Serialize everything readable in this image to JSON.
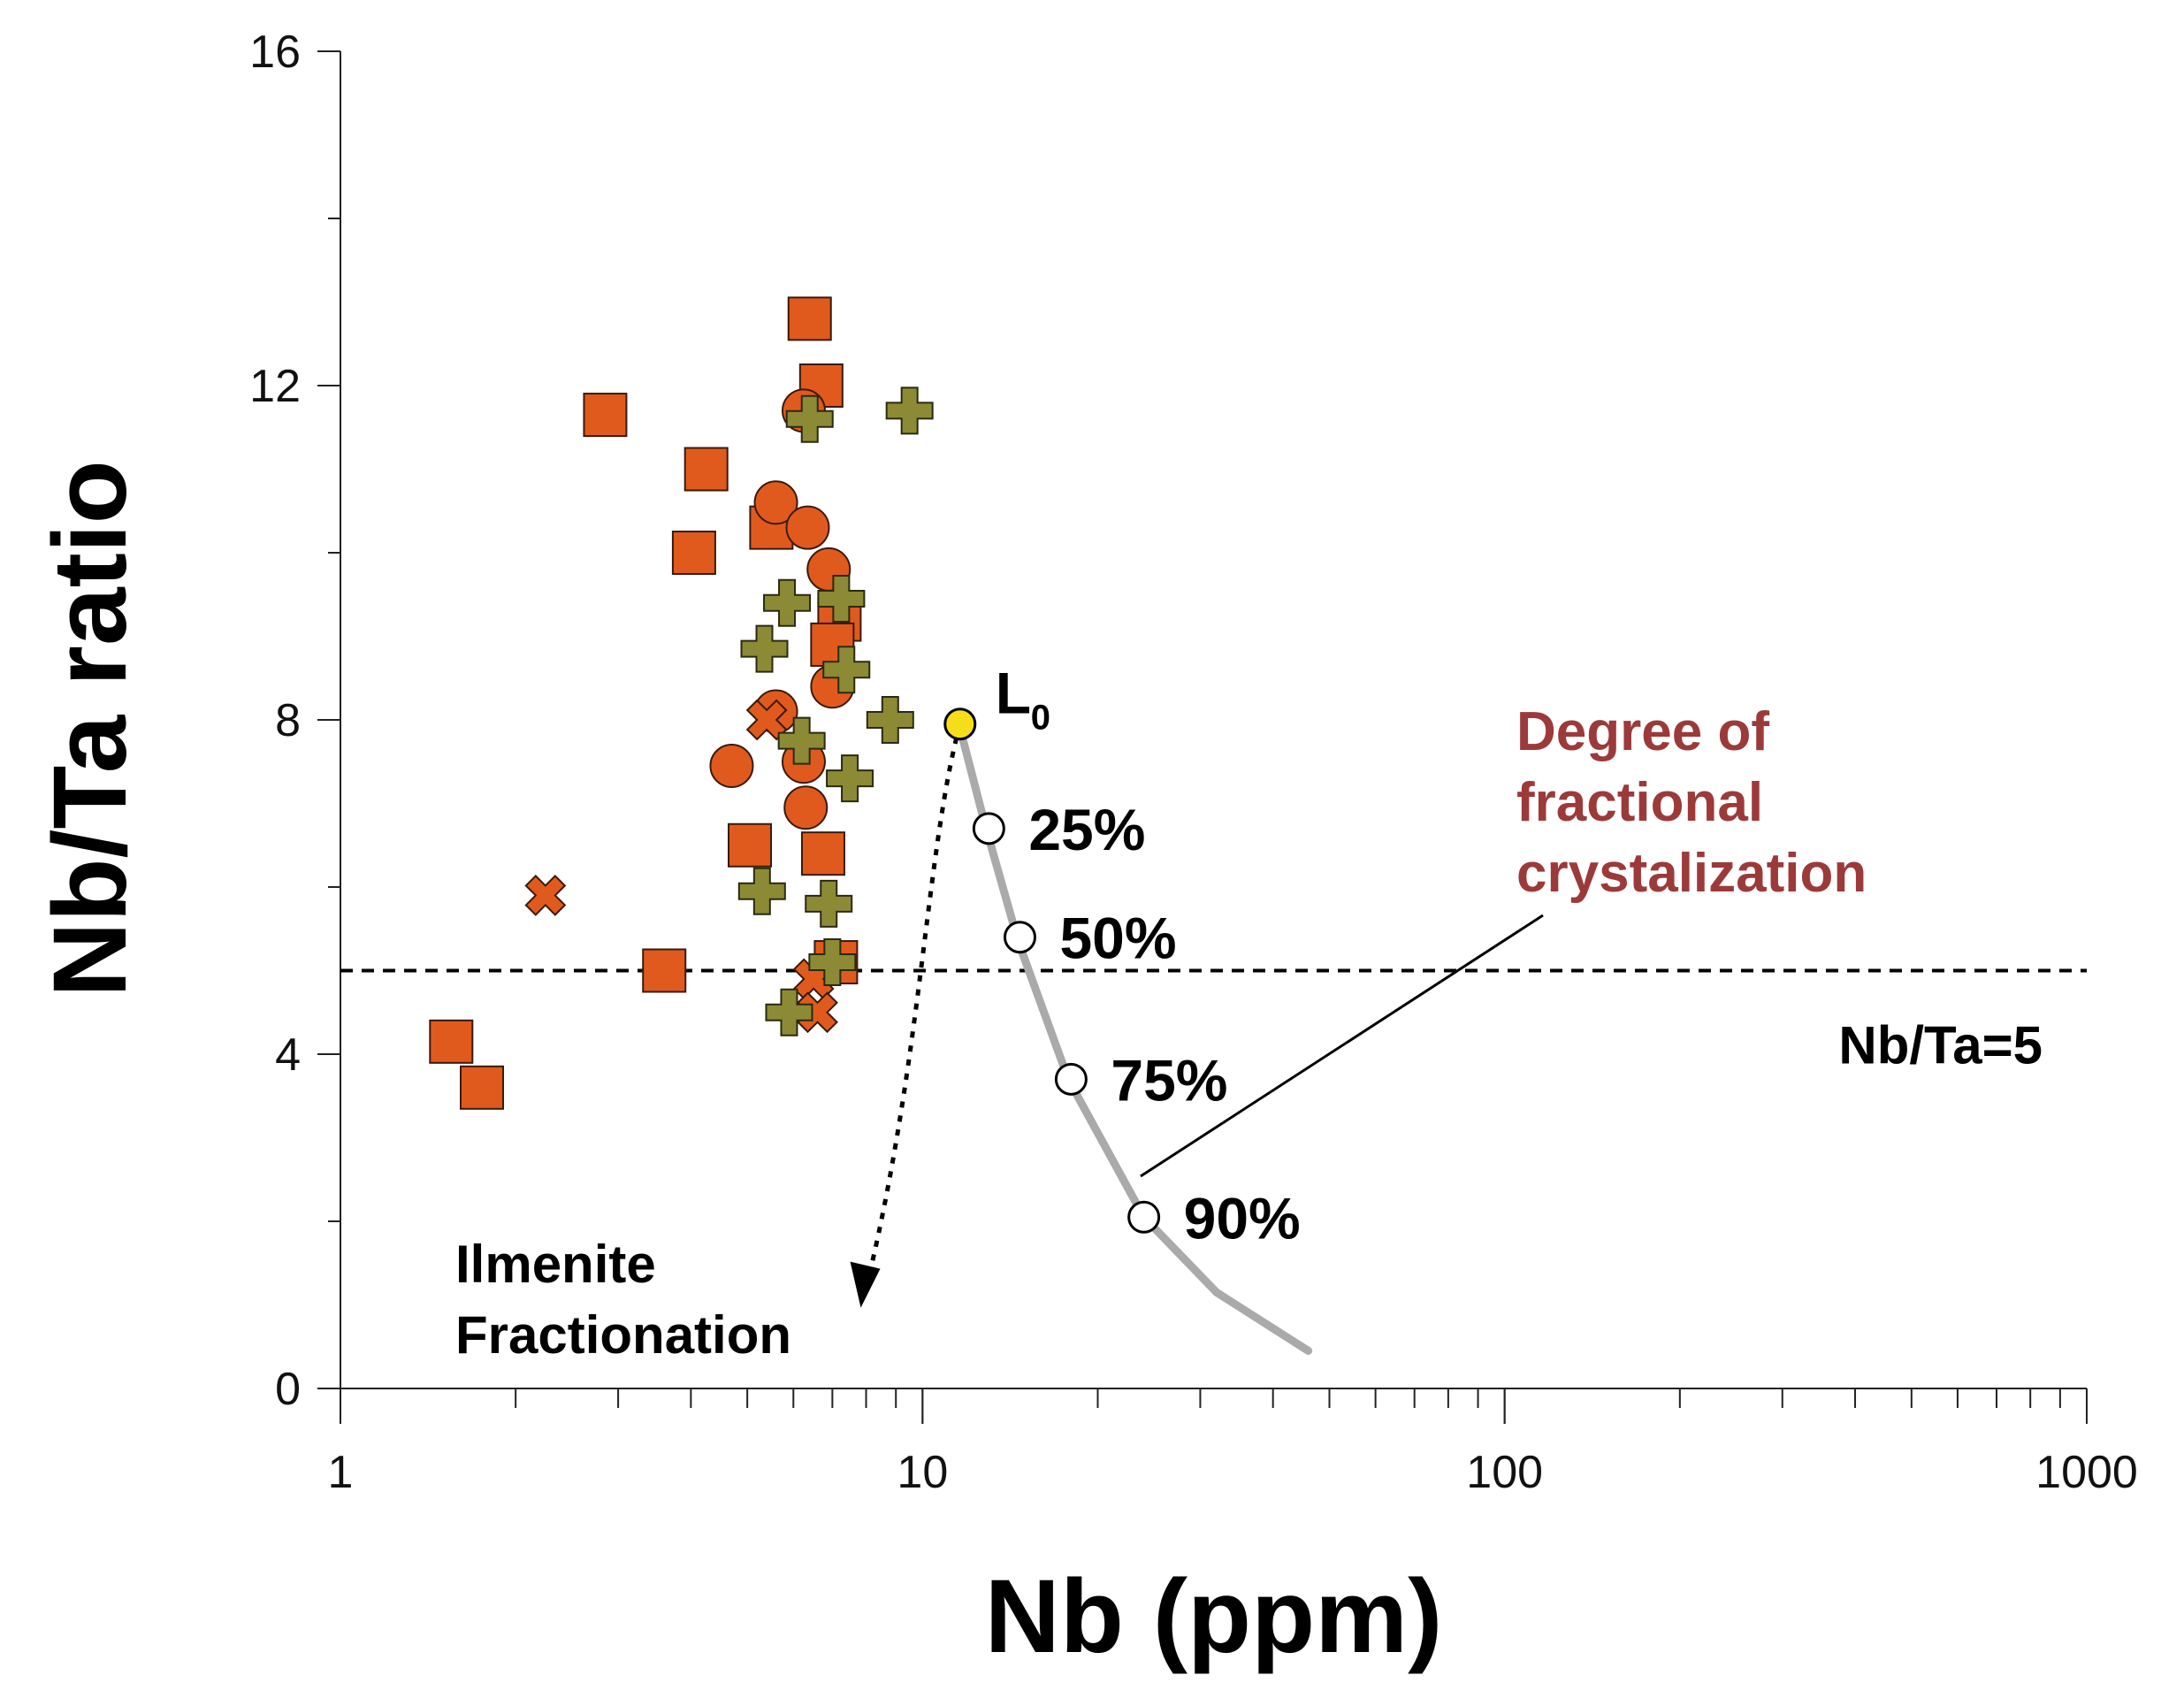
{
  "chart_data": {
    "type": "scatter",
    "xscale": "log",
    "xlim": [
      1,
      1000
    ],
    "ylim": [
      0,
      16
    ],
    "xlabel": "Nb (ppm)",
    "ylabel": "Nb/Ta ratio",
    "x_ticks": [
      1,
      10,
      100,
      1000
    ],
    "y_ticks": [
      0,
      4,
      8,
      12,
      16
    ],
    "colors": {
      "square": "#e05a1e",
      "circle": "#e05a1e",
      "cross": "#e05a1e",
      "plus": "#8c8a34",
      "curve": "#aaaaaa",
      "l0": "#f6dd1a",
      "annotation_red": "#9c3a3a"
    },
    "series": [
      {
        "name": "squares",
        "marker": "square",
        "points": [
          [
            6.4,
            12.8
          ],
          [
            6.7,
            12.0
          ],
          [
            2.85,
            11.65
          ],
          [
            4.25,
            11.0
          ],
          [
            4.05,
            10.0
          ],
          [
            5.5,
            10.3
          ],
          [
            7.2,
            9.2
          ],
          [
            7.0,
            8.9
          ],
          [
            5.05,
            6.5
          ],
          [
            6.75,
            6.4
          ],
          [
            3.6,
            5.0
          ],
          [
            7.1,
            5.1
          ],
          [
            1.55,
            4.15
          ],
          [
            1.75,
            3.6
          ]
        ]
      },
      {
        "name": "circles",
        "marker": "circle",
        "points": [
          [
            6.25,
            11.7
          ],
          [
            5.6,
            10.6
          ],
          [
            6.35,
            10.3
          ],
          [
            6.9,
            9.8
          ],
          [
            7.0,
            8.4
          ],
          [
            5.6,
            8.1
          ],
          [
            4.7,
            7.45
          ],
          [
            6.25,
            7.5
          ],
          [
            6.3,
            6.95
          ]
        ]
      },
      {
        "name": "crosses",
        "marker": "x",
        "points": [
          [
            5.4,
            8.0
          ],
          [
            2.25,
            5.9
          ],
          [
            6.5,
            4.9
          ],
          [
            6.6,
            4.5
          ]
        ]
      },
      {
        "name": "pluses",
        "marker": "plus",
        "points": [
          [
            6.4,
            11.6
          ],
          [
            9.5,
            11.7
          ],
          [
            5.85,
            9.4
          ],
          [
            7.25,
            9.45
          ],
          [
            5.35,
            8.85
          ],
          [
            7.4,
            8.6
          ],
          [
            8.8,
            8.0
          ],
          [
            6.2,
            7.75
          ],
          [
            7.5,
            7.3
          ],
          [
            5.3,
            5.95
          ],
          [
            6.9,
            5.8
          ],
          [
            7.0,
            5.1
          ],
          [
            5.9,
            4.5
          ]
        ]
      }
    ],
    "reference_line": {
      "y": 5,
      "label": "Nb/Ta=5"
    },
    "fractionation_curve": {
      "label": "Degree of fractional crystalization",
      "line": [
        [
          11.6,
          7.9
        ],
        [
          12.8,
          6.75
        ],
        [
          14.6,
          5.35
        ],
        [
          17.8,
          3.7
        ],
        [
          24.0,
          2.05
        ],
        [
          32.0,
          1.15
        ],
        [
          46.0,
          0.45
        ]
      ],
      "origin": {
        "label": "L",
        "subscript": "0",
        "x": 11.6,
        "y": 7.95
      },
      "steps": [
        {
          "label": "25%",
          "x": 13.0,
          "y": 6.7
        },
        {
          "label": "50%",
          "x": 14.7,
          "y": 5.4
        },
        {
          "label": "75%",
          "x": 18.0,
          "y": 3.7
        },
        {
          "label": "90%",
          "x": 24.0,
          "y": 2.05
        }
      ]
    },
    "ilmenite_arrow": {
      "label_line1": "Ilmenite",
      "label_line2": "Fractionation",
      "path": [
        [
          11.6,
          7.95
        ],
        [
          9.8,
          5.2
        ],
        [
          8.0,
          1.2
        ]
      ]
    }
  }
}
